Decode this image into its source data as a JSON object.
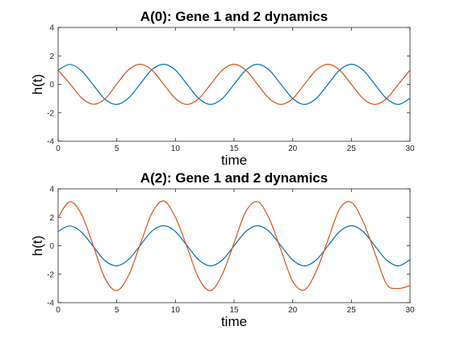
{
  "chart_data": [
    {
      "type": "line",
      "title": "A(0): Gene 1 and 2 dynamics",
      "xlabel": "time",
      "ylabel": "h(t)",
      "xlim": [
        0,
        30
      ],
      "ylim": [
        -4,
        4
      ],
      "xticks": [
        0,
        5,
        10,
        15,
        20,
        25,
        30
      ],
      "yticks": [
        -4,
        -2,
        0,
        2,
        4
      ],
      "grid": false,
      "series": [
        {
          "color": "#0072BD",
          "x": [
            0,
            1,
            2,
            3,
            4,
            5,
            6,
            7,
            8,
            9,
            10,
            11,
            12,
            13,
            14,
            15,
            16,
            17,
            18,
            19,
            20,
            21,
            22,
            23,
            24,
            25,
            26,
            27,
            28,
            29,
            30
          ],
          "y": [
            1.0,
            1.4,
            0.95,
            -0.05,
            -1.05,
            -1.41,
            -0.97,
            0.03,
            1.03,
            1.41,
            1.0,
            0.0,
            -1.0,
            -1.41,
            -1.0,
            0.0,
            1.0,
            1.41,
            1.0,
            0.0,
            -1.0,
            -1.41,
            -1.0,
            0.0,
            1.0,
            1.41,
            1.0,
            0.0,
            -1.0,
            -1.41,
            -0.98
          ]
        },
        {
          "color": "#D95319",
          "x": [
            0,
            1,
            2,
            3,
            4,
            5,
            6,
            7,
            8,
            9,
            10,
            11,
            12,
            13,
            14,
            15,
            16,
            17,
            18,
            19,
            20,
            21,
            22,
            23,
            24,
            25,
            26,
            27,
            28,
            29,
            30
          ],
          "y": [
            1.0,
            0.05,
            -0.95,
            -1.4,
            -1.02,
            0.02,
            1.02,
            1.41,
            1.0,
            0.0,
            -1.0,
            -1.41,
            -1.0,
            0.0,
            1.0,
            1.41,
            1.0,
            0.0,
            -1.0,
            -1.41,
            -1.0,
            0.0,
            1.0,
            1.41,
            1.0,
            0.0,
            -1.0,
            -1.41,
            -1.0,
            0.0,
            1.0
          ]
        }
      ]
    },
    {
      "type": "line",
      "title": "A(2): Gene 1 and 2 dynamics",
      "xlabel": "time",
      "ylabel": "h(t)",
      "xlim": [
        0,
        30
      ],
      "ylim": [
        -4,
        4
      ],
      "xticks": [
        0,
        5,
        10,
        15,
        20,
        25,
        30
      ],
      "yticks": [
        -4,
        -2,
        0,
        2,
        4
      ],
      "grid": false,
      "series": [
        {
          "color": "#0072BD",
          "x": [
            0,
            1,
            2,
            3,
            4,
            5,
            6,
            7,
            8,
            9,
            10,
            11,
            12,
            13,
            14,
            15,
            16,
            17,
            18,
            19,
            20,
            21,
            22,
            23,
            24,
            25,
            26,
            27,
            28,
            29,
            30
          ],
          "y": [
            1.0,
            1.4,
            0.95,
            -0.05,
            -1.05,
            -1.41,
            -0.97,
            0.03,
            1.03,
            1.41,
            1.0,
            0.0,
            -1.0,
            -1.41,
            -1.0,
            0.0,
            1.0,
            1.41,
            1.0,
            0.0,
            -1.0,
            -1.41,
            -1.0,
            0.0,
            1.0,
            1.41,
            1.0,
            0.0,
            -1.0,
            -1.41,
            -0.98
          ]
        },
        {
          "color": "#D95319",
          "x": [
            0,
            1,
            2,
            3,
            4,
            5,
            6,
            7,
            8,
            9,
            10,
            11,
            12,
            13,
            14,
            15,
            16,
            17,
            18,
            19,
            20,
            21,
            22,
            23,
            24,
            25,
            26,
            27,
            28,
            29,
            30
          ],
          "y": [
            2.0,
            3.1,
            2.2,
            0.0,
            -2.3,
            -3.15,
            -2.1,
            0.1,
            2.3,
            3.15,
            2.0,
            -0.1,
            -2.3,
            -3.15,
            -2.0,
            0.2,
            2.4,
            3.1,
            1.9,
            -0.3,
            -2.5,
            -3.1,
            -1.8,
            0.4,
            2.6,
            3.05,
            1.7,
            -0.5,
            -2.7,
            -3.0,
            -2.8
          ]
        }
      ]
    }
  ]
}
